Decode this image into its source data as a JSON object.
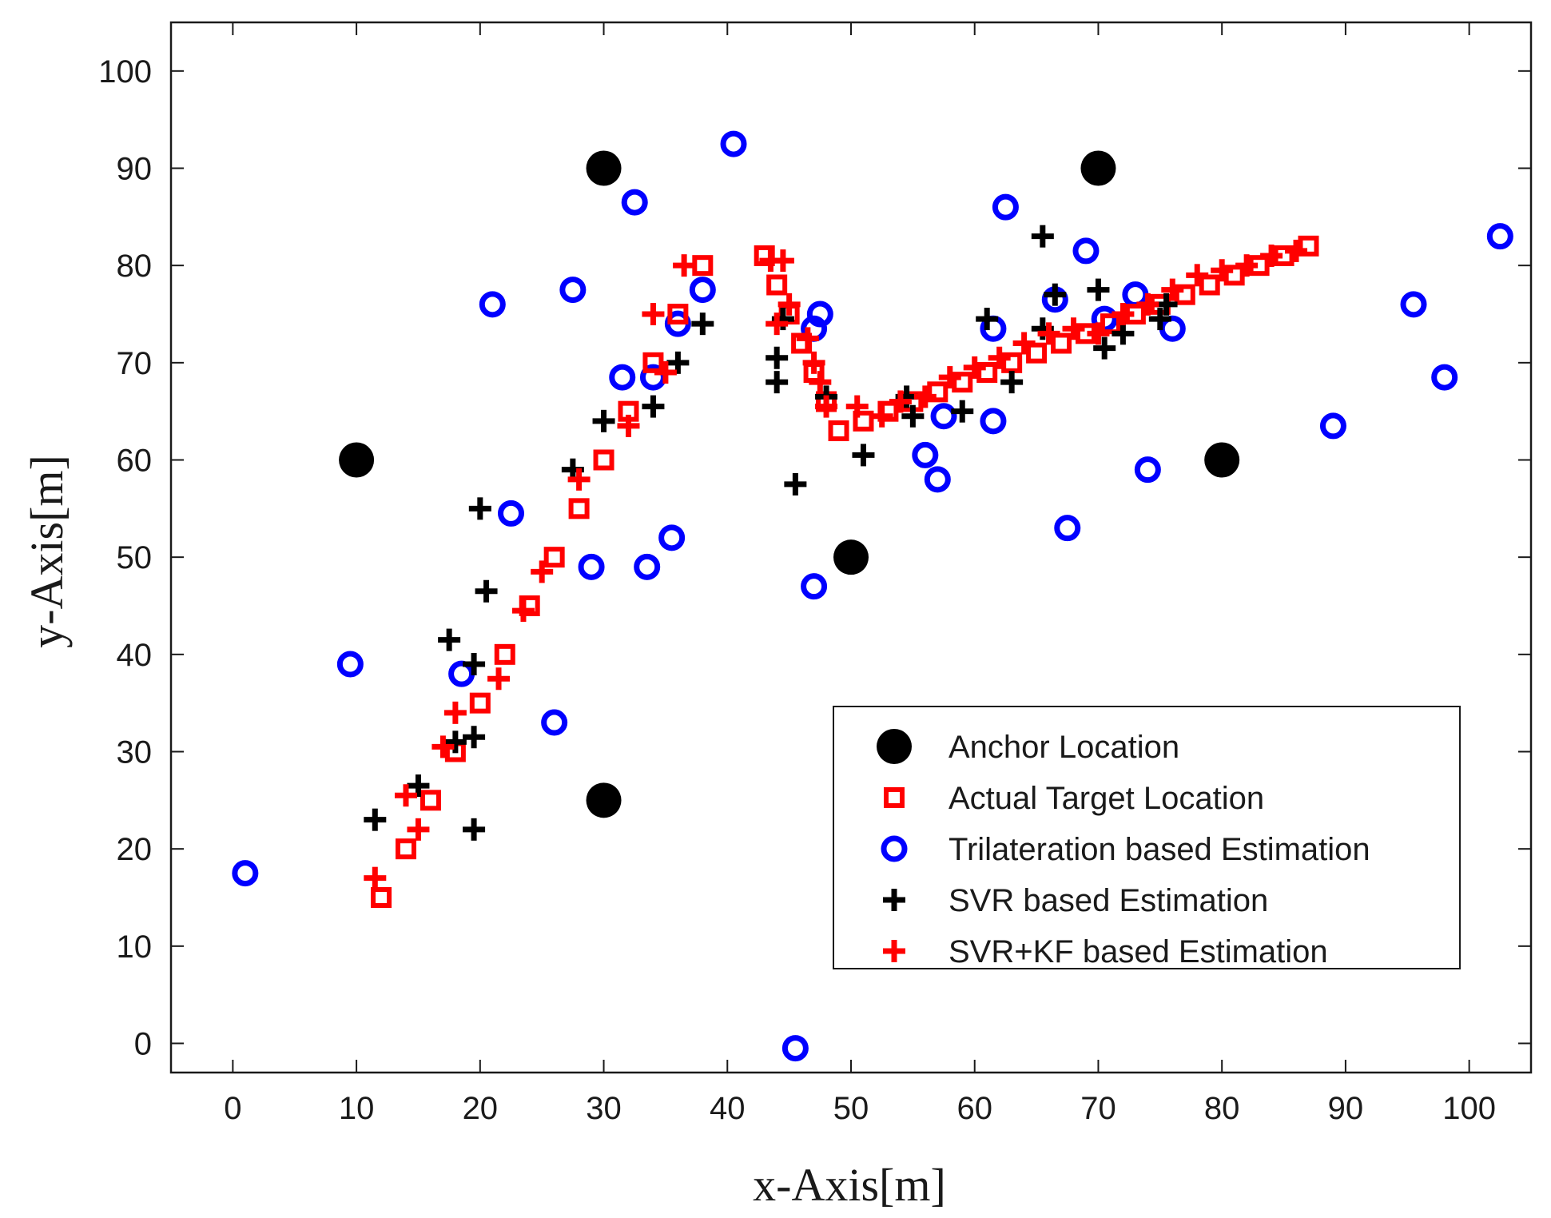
{
  "chart_data": {
    "type": "scatter",
    "title": "",
    "xlabel": "x-Axis[m]",
    "ylabel": "y-Axis[m]",
    "xlim": [
      -5,
      105
    ],
    "ylim": [
      -3,
      105
    ],
    "x_ticks": [
      "0",
      "10",
      "20",
      "30",
      "40",
      "50",
      "60",
      "70",
      "80",
      "90",
      "100"
    ],
    "y_ticks": [
      "0",
      "10",
      "20",
      "30",
      "40",
      "50",
      "60",
      "70",
      "80",
      "90",
      "100"
    ],
    "grid": false,
    "legend_position": "bottom-right",
    "series": [
      {
        "name": "Anchor Location",
        "marker": "filled-circle",
        "color": "#000000",
        "points": [
          [
            10,
            60
          ],
          [
            30,
            90
          ],
          [
            70,
            90
          ],
          [
            80,
            60
          ],
          [
            50,
            50
          ],
          [
            30,
            25
          ]
        ]
      },
      {
        "name": "Actual Target Location",
        "marker": "square",
        "color": "#ff0000",
        "points": [
          [
            12,
            15
          ],
          [
            14,
            20
          ],
          [
            16,
            25
          ],
          [
            18,
            30
          ],
          [
            20,
            35
          ],
          [
            22,
            40
          ],
          [
            24,
            45
          ],
          [
            26,
            50
          ],
          [
            28,
            55
          ],
          [
            30,
            60
          ],
          [
            32,
            65
          ],
          [
            34,
            70
          ],
          [
            36,
            75
          ],
          [
            38,
            80
          ],
          [
            43,
            81
          ],
          [
            44,
            78
          ],
          [
            45,
            75
          ],
          [
            46,
            72
          ],
          [
            47,
            69
          ],
          [
            48,
            66
          ],
          [
            49,
            63
          ],
          [
            51,
            64
          ],
          [
            53,
            65
          ],
          [
            55,
            66
          ],
          [
            57,
            67
          ],
          [
            59,
            68
          ],
          [
            61,
            69
          ],
          [
            63,
            70
          ],
          [
            65,
            71
          ],
          [
            67,
            72
          ],
          [
            69,
            73
          ],
          [
            71,
            74
          ],
          [
            73,
            75
          ],
          [
            75,
            76
          ],
          [
            77,
            77
          ],
          [
            79,
            78
          ],
          [
            81,
            79
          ],
          [
            83,
            80
          ],
          [
            85,
            81
          ],
          [
            87,
            82
          ]
        ]
      },
      {
        "name": "Trilateration based Estimation",
        "marker": "circle",
        "color": "#0000ff",
        "points": [
          [
            1,
            17.5
          ],
          [
            9.5,
            39
          ],
          [
            18.5,
            38
          ],
          [
            21,
            76
          ],
          [
            22.5,
            54.5
          ],
          [
            26,
            33
          ],
          [
            27.5,
            77.5
          ],
          [
            29,
            49
          ],
          [
            31.5,
            68.5
          ],
          [
            32.5,
            86.5
          ],
          [
            33.5,
            49
          ],
          [
            34,
            68.5
          ],
          [
            35.5,
            52
          ],
          [
            36,
            74
          ],
          [
            38,
            77.5
          ],
          [
            40.5,
            92.5
          ],
          [
            45.5,
            -0.5
          ],
          [
            47,
            47
          ],
          [
            47,
            73.5
          ],
          [
            47.5,
            75
          ],
          [
            56,
            60.5
          ],
          [
            57,
            58
          ],
          [
            57.5,
            64.5
          ],
          [
            61.5,
            64
          ],
          [
            61.5,
            73.5
          ],
          [
            62.5,
            86
          ],
          [
            66.5,
            76.5
          ],
          [
            67.5,
            53
          ],
          [
            69,
            81.5
          ],
          [
            70.5,
            74.5
          ],
          [
            73,
            77
          ],
          [
            74,
            59
          ],
          [
            76,
            73.5
          ],
          [
            89,
            63.5
          ],
          [
            95.5,
            76
          ],
          [
            98,
            68.5
          ],
          [
            102.5,
            83
          ]
        ]
      },
      {
        "name": "SVR based Estimation",
        "marker": "plus",
        "color": "#000000",
        "points": [
          [
            11.5,
            23
          ],
          [
            15,
            26.5
          ],
          [
            17.5,
            41.5
          ],
          [
            18,
            31
          ],
          [
            19.5,
            22
          ],
          [
            19.5,
            31.5
          ],
          [
            19.5,
            39
          ],
          [
            20,
            55
          ],
          [
            20.5,
            46.5
          ],
          [
            27.5,
            59
          ],
          [
            30,
            64
          ],
          [
            34,
            65.5
          ],
          [
            36,
            70
          ],
          [
            38,
            74
          ],
          [
            44,
            70.5
          ],
          [
            44,
            68
          ],
          [
            44.5,
            74.5
          ],
          [
            45.5,
            57.5
          ],
          [
            48,
            66.5
          ],
          [
            51,
            60.5
          ],
          [
            54.5,
            66.5
          ],
          [
            55,
            64.5
          ],
          [
            59,
            65
          ],
          [
            61,
            74.5
          ],
          [
            63,
            68
          ],
          [
            65.5,
            83
          ],
          [
            65.5,
            73.5
          ],
          [
            66.5,
            77
          ],
          [
            70,
            77.5
          ],
          [
            70.5,
            71.5
          ],
          [
            72,
            73
          ],
          [
            75,
            74.5
          ],
          [
            75.5,
            76
          ]
        ]
      },
      {
        "name": "SVR+KF based Estimation",
        "marker": "plus",
        "color": "#ff0000",
        "points": [
          [
            11.5,
            17
          ],
          [
            14,
            25.5
          ],
          [
            15,
            22
          ],
          [
            17,
            30.5
          ],
          [
            18,
            34
          ],
          [
            21.5,
            37.5
          ],
          [
            23.5,
            44.5
          ],
          [
            25,
            48.5
          ],
          [
            28,
            58
          ],
          [
            32,
            63.5
          ],
          [
            35,
            69
          ],
          [
            34,
            75
          ],
          [
            36.5,
            80
          ],
          [
            43.5,
            80.5
          ],
          [
            44.5,
            80.5
          ],
          [
            44,
            74
          ],
          [
            45,
            76
          ],
          [
            46.5,
            72.5
          ],
          [
            47,
            70
          ],
          [
            47.5,
            68
          ],
          [
            48,
            65.5
          ],
          [
            50.5,
            65.5
          ],
          [
            52.5,
            64.5
          ],
          [
            54,
            66
          ],
          [
            56,
            66.5
          ],
          [
            58,
            68.5
          ],
          [
            60,
            69.5
          ],
          [
            62,
            70.5
          ],
          [
            64,
            72
          ],
          [
            66,
            73
          ],
          [
            68,
            73.5
          ],
          [
            70,
            73
          ],
          [
            72,
            75
          ],
          [
            74,
            76
          ],
          [
            76,
            77.5
          ],
          [
            78,
            79
          ],
          [
            80,
            79.5
          ],
          [
            82,
            80
          ],
          [
            84,
            81
          ],
          [
            86,
            81.5
          ]
        ]
      }
    ]
  }
}
